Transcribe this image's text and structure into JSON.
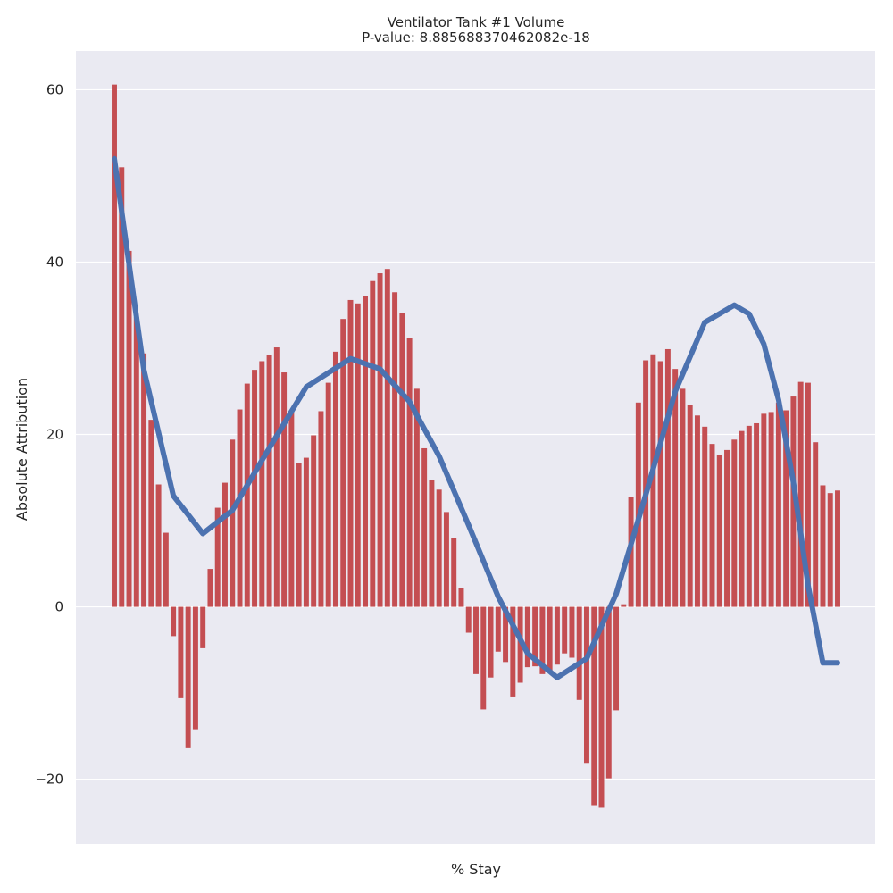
{
  "chart_data": {
    "type": "bar",
    "title": "Ventilator Tank #1 Volume",
    "subtitle": "P-value: 8.885688370462082e-18",
    "xlabel": "% Stay",
    "ylabel": "Absolute Attribution",
    "ylim": [
      -27.5,
      64.5
    ],
    "yticks": [
      -20,
      0,
      20,
      40,
      60
    ],
    "ytick_labels": [
      "−20",
      "0",
      "20",
      "40",
      "60"
    ],
    "xticks_visible": false,
    "grid": true,
    "bar_color": "#c44e52",
    "line_color": "#4c72b0",
    "background_color": "#eaeaf2",
    "grid_color": "#ffffff",
    "values": [
      60.6,
      51.0,
      41.3,
      33.6,
      29.4,
      21.7,
      14.2,
      8.6,
      -3.4,
      -10.6,
      -16.4,
      -14.2,
      -4.8,
      4.4,
      11.5,
      14.4,
      19.4,
      22.9,
      25.9,
      27.5,
      28.5,
      29.2,
      30.1,
      27.2,
      22.8,
      16.7,
      17.3,
      19.9,
      22.7,
      26.0,
      29.6,
      33.4,
      35.6,
      35.2,
      36.1,
      37.8,
      38.7,
      39.2,
      36.5,
      34.1,
      31.2,
      25.3,
      18.4,
      14.7,
      13.6,
      11.0,
      8.0,
      2.2,
      -3.0,
      -7.8,
      -11.9,
      -8.2,
      -5.2,
      -6.4,
      -10.4,
      -8.8,
      -7.0,
      -6.9,
      -7.8,
      -7.4,
      -6.7,
      -5.4,
      -5.9,
      -10.8,
      -18.1,
      -23.1,
      -23.3,
      -19.9,
      -12.0,
      0.3,
      12.7,
      23.7,
      28.6,
      29.3,
      28.5,
      29.9,
      27.6,
      25.3,
      23.4,
      22.2,
      20.9,
      18.9,
      17.6,
      18.2,
      19.4,
      20.4,
      21.0,
      21.3,
      22.4,
      22.6,
      23.7,
      22.8,
      24.4,
      26.1,
      26.0,
      19.1,
      14.1,
      13.2,
      13.5
    ],
    "trend_line": {
      "x": [
        0,
        4,
        8,
        12,
        16,
        20,
        26,
        32,
        36,
        40,
        44,
        48,
        52,
        56,
        60,
        64,
        68,
        72,
        76,
        80,
        84,
        86,
        88,
        90,
        92,
        94,
        96,
        98
      ],
      "values": [
        52.0,
        27.5,
        12.9,
        8.5,
        11.2,
        17.0,
        25.5,
        28.8,
        27.6,
        23.8,
        17.5,
        9.5,
        1.2,
        -5.4,
        -8.2,
        -6.0,
        1.5,
        13.0,
        25.0,
        33.0,
        35.0,
        34.0,
        30.5,
        24.0,
        14.5,
        2.5,
        -6.5,
        -6.5
      ]
    }
  }
}
